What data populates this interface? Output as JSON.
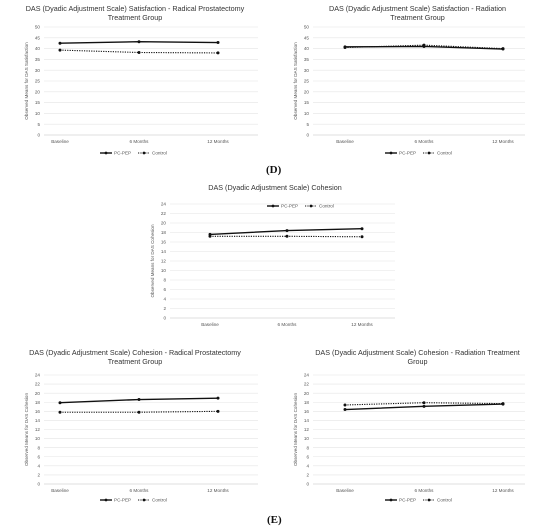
{
  "panel_labels": {
    "d": "(D)",
    "e": "(E)"
  },
  "chart_data": [
    {
      "id": "c1",
      "type": "line",
      "title": "DAS (Dyadic Adjustment Scale) Satisfaction - Radical Prostatectomy Treatment Group",
      "ylabel": "Observed Means for DAS Satisfaction",
      "categories": [
        "Baseline",
        "6 Months",
        "12 Months"
      ],
      "ylim": [
        0,
        50
      ],
      "yticks": [
        0,
        5,
        10,
        15,
        20,
        25,
        30,
        35,
        40,
        45,
        50
      ],
      "series": [
        {
          "name": "PC-PEP",
          "values": [
            42.5,
            43.2,
            42.8
          ],
          "style": "solid"
        },
        {
          "name": "Control",
          "values": [
            39.3,
            38.2,
            38.0
          ],
          "style": "dotted"
        }
      ],
      "legend": "bottom"
    },
    {
      "id": "c2",
      "type": "line",
      "title": "DAS (Dyadic Adjustment Scale) Satisfaction - Radiation Treatment Group",
      "ylabel": "Observed Means for DAS Satisfaction",
      "categories": [
        "Baseline",
        "6 Months",
        "12 Months"
      ],
      "ylim": [
        0,
        50
      ],
      "yticks": [
        0,
        5,
        10,
        15,
        20,
        25,
        30,
        35,
        40,
        45,
        50
      ],
      "series": [
        {
          "name": "PC-PEP",
          "values": [
            40.8,
            41.0,
            39.8
          ],
          "style": "solid"
        },
        {
          "name": "Control",
          "values": [
            40.5,
            41.6,
            40.0
          ],
          "style": "dotted"
        }
      ],
      "legend": "bottom"
    },
    {
      "id": "c3",
      "type": "line",
      "title": "DAS (Dyadic Adjustment Scale) Cohesion",
      "ylabel": "Observed Means for DAS Cohesion",
      "categories": [
        "Baseline",
        "6 Months",
        "12 Months"
      ],
      "ylim": [
        0,
        24
      ],
      "yticks": [
        0,
        2,
        4,
        6,
        8,
        10,
        12,
        14,
        16,
        18,
        20,
        22,
        24
      ],
      "series": [
        {
          "name": "PC-PEP",
          "values": [
            17.6,
            18.4,
            18.8
          ],
          "style": "solid"
        },
        {
          "name": "Control",
          "values": [
            17.2,
            17.2,
            17.1
          ],
          "style": "dotted"
        }
      ],
      "legend": "top-right"
    },
    {
      "id": "c4",
      "type": "line",
      "title": "DAS (Dyadic Adjustment Scale) Cohesion - Radical Prostatectomy Treatment Group",
      "ylabel": "Observed Means for DAS Cohesion",
      "categories": [
        "Baseline",
        "6 Months",
        "12 Months"
      ],
      "ylim": [
        0,
        24
      ],
      "yticks": [
        0,
        2,
        4,
        6,
        8,
        10,
        12,
        14,
        16,
        18,
        20,
        22,
        24
      ],
      "series": [
        {
          "name": "PC-PEP",
          "values": [
            17.9,
            18.6,
            18.9
          ],
          "style": "solid"
        },
        {
          "name": "Control",
          "values": [
            15.8,
            15.8,
            16.0
          ],
          "style": "dotted"
        }
      ],
      "legend": "bottom"
    },
    {
      "id": "c5",
      "type": "line",
      "title": "DAS (Dyadic Adjustment Scale) Cohesion - Radiation Treatment Group",
      "ylabel": "Observed Means for DAS Cohesion",
      "categories": [
        "Baseline",
        "6 Months",
        "12 Months"
      ],
      "ylim": [
        0,
        24
      ],
      "yticks": [
        0,
        2,
        4,
        6,
        8,
        10,
        12,
        14,
        16,
        18,
        20,
        22,
        24
      ],
      "series": [
        {
          "name": "PC-PEP",
          "values": [
            16.4,
            17.1,
            17.6
          ],
          "style": "solid"
        },
        {
          "name": "Control",
          "values": [
            17.4,
            17.9,
            17.7
          ],
          "style": "dotted"
        }
      ],
      "legend": "bottom"
    }
  ]
}
